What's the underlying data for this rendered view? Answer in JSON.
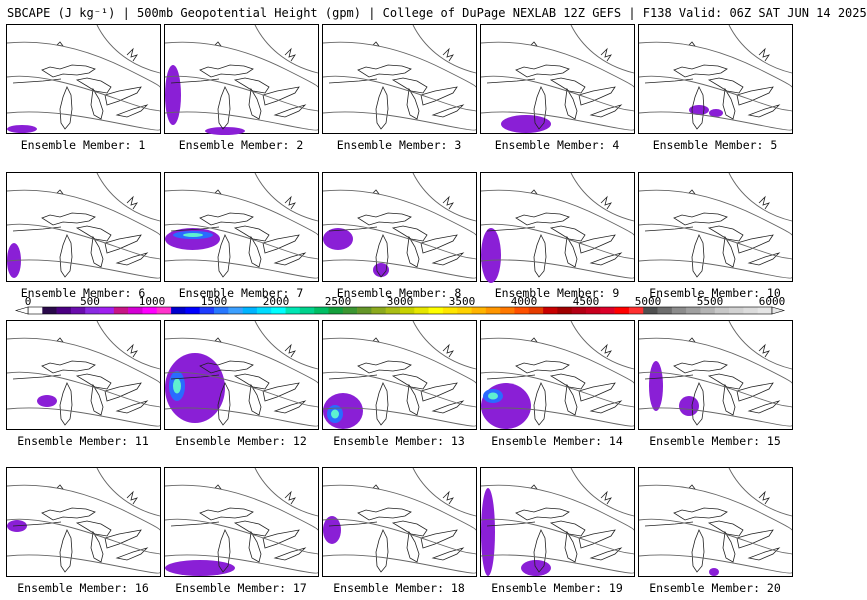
{
  "title": "SBCAPE (J kg⁻¹) | 500mb Geopotential Height (gpm) | College of DuPage NEXLAB 12Z GEFS | F138 Valid: 06Z SAT JUN 14 2025",
  "member_label_prefix": "Ensemble Member: ",
  "members": [
    "1",
    "2",
    "3",
    "4",
    "5",
    "6",
    "7",
    "8",
    "9",
    "10",
    "11",
    "12",
    "13",
    "14",
    "15",
    "16",
    "17",
    "18",
    "19",
    "20"
  ],
  "colorbar": {
    "ticks": [
      "0",
      "500",
      "1000",
      "1500",
      "2000",
      "2500",
      "3000",
      "3500",
      "4000",
      "4500",
      "5000",
      "5500",
      "6000"
    ],
    "colors": [
      "#ffffff",
      "#2a0a4a",
      "#4b0082",
      "#6a0dad",
      "#8a2be2",
      "#a020f0",
      "#c71585",
      "#d400d4",
      "#ff00ff",
      "#ff33cc",
      "#0000cd",
      "#0000ff",
      "#1e3cff",
      "#2878ff",
      "#3ca0ff",
      "#00b4ff",
      "#00dcff",
      "#00ffff",
      "#00e6b4",
      "#00d28c",
      "#00be64",
      "#14a03c",
      "#3c9632",
      "#649628",
      "#8caa1e",
      "#aabe14",
      "#c8d200",
      "#e6e600",
      "#ffff00",
      "#ffe600",
      "#ffd200",
      "#ffb400",
      "#ff9600",
      "#ff7800",
      "#ff5000",
      "#e63c00",
      "#c80000",
      "#a00000",
      "#b40014",
      "#c8001e",
      "#dc0028",
      "#ff0000",
      "#ff3030",
      "#505050",
      "#6e6e6e",
      "#8c8c8c",
      "#a0a0a0",
      "#b4b4b4",
      "#c8c8c8",
      "#d2d2d2",
      "#dcdcdc",
      "#e6e6e6"
    ]
  }
}
